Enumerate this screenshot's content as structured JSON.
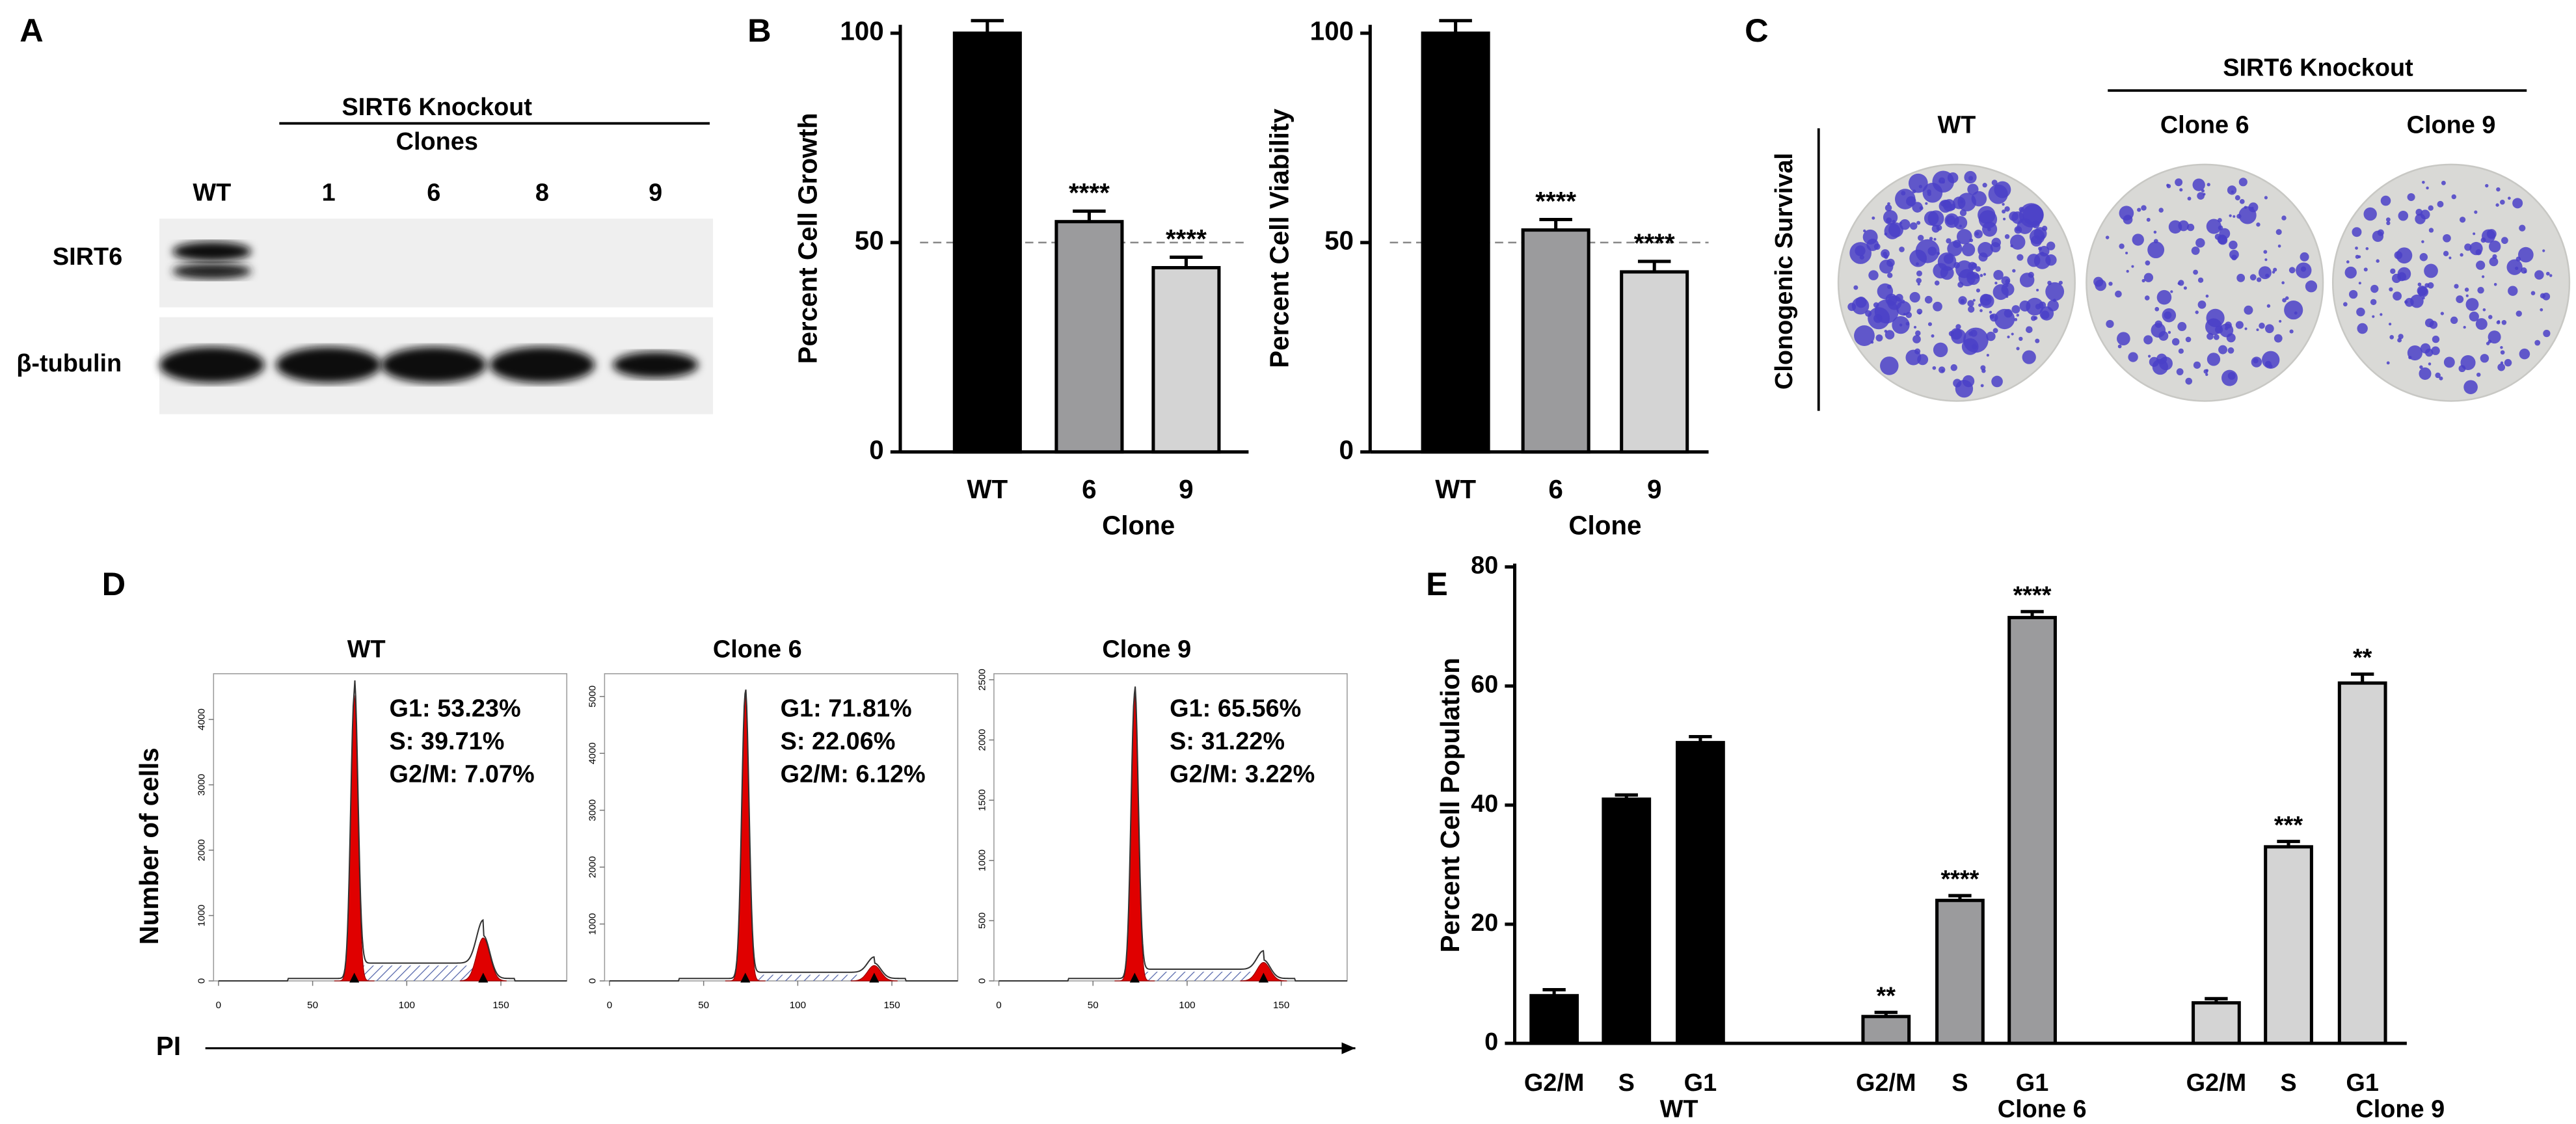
{
  "panel_labels": [
    "A",
    "B",
    "C",
    "D",
    "E"
  ],
  "western_blot": {
    "title": "SIRT6 Knockout",
    "subtitle": "Clones",
    "lanes": [
      "WT",
      "1",
      "6",
      "8",
      "9"
    ],
    "rows": [
      "SIRT6",
      "β-tubulin"
    ]
  },
  "clonogenic": {
    "title": "SIRT6 Knockout",
    "ylabel": "Clonogenic Survival",
    "plates": [
      "WT",
      "Clone 6",
      "Clone 9"
    ]
  },
  "flow_cytometry": {
    "ylabel": "Number of cells",
    "xlabel": "PI"
  },
  "chart_data": [
    {
      "type": "bar",
      "ylabel": "Percent Cell Growth",
      "xlabel": "Clone",
      "categories": [
        "WT",
        "6",
        "9"
      ],
      "values": [
        100,
        55,
        44
      ],
      "errors": [
        3,
        2.5,
        2.5
      ],
      "colors": [
        "#000000",
        "#9b9b9d",
        "#d4d4d4"
      ],
      "annotations": [
        null,
        "****",
        "****"
      ],
      "reference_line": 50,
      "ylim": [
        0,
        102
      ],
      "yticks": [
        0,
        50,
        100
      ]
    },
    {
      "type": "bar",
      "ylabel": "Percent Cell Viability",
      "xlabel": "Clone",
      "categories": [
        "WT",
        "6",
        "9"
      ],
      "values": [
        100,
        53,
        43
      ],
      "errors": [
        3,
        2.5,
        2.5
      ],
      "colors": [
        "#000000",
        "#9b9b9d",
        "#d4d4d4"
      ],
      "annotations": [
        null,
        "****",
        "****"
      ],
      "reference_line": 50,
      "ylim": [
        0,
        102
      ],
      "yticks": [
        0,
        50,
        100
      ]
    },
    {
      "type": "histogram",
      "title": "WT",
      "annotations": [
        "G1: 53.23%",
        "S: 39.71%",
        "G2/M: 7.07%"
      ],
      "xlim": [
        0,
        185
      ],
      "xticks": [
        0,
        50,
        100,
        150
      ],
      "ylim": [
        0,
        4700
      ],
      "yticks": [
        0,
        1000,
        2000,
        3000,
        4000
      ]
    },
    {
      "type": "histogram",
      "title": "Clone 6",
      "annotations": [
        "G1: 71.81%",
        "S: 22.06%",
        "G2/M: 6.12%"
      ],
      "xlim": [
        0,
        185
      ],
      "xticks": [
        0,
        50,
        100,
        150
      ],
      "ylim": [
        0,
        5400
      ],
      "yticks": [
        0,
        1000,
        2000,
        3000,
        4000,
        5000
      ]
    },
    {
      "type": "histogram",
      "title": "Clone 9",
      "annotations": [
        "G1: 65.56%",
        "S: 31.22%",
        "G2/M: 3.22%"
      ],
      "xlim": [
        0,
        185
      ],
      "xticks": [
        0,
        50,
        100,
        150
      ],
      "ylim": [
        0,
        2550
      ],
      "yticks": [
        0,
        500,
        1000,
        1500,
        2000,
        2500
      ]
    },
    {
      "type": "grouped_bar",
      "ylabel": "Percent Cell Population",
      "categories": [
        "G2/M",
        "S",
        "G1"
      ],
      "ylim": [
        0,
        80
      ],
      "yticks": [
        0,
        20,
        40,
        60,
        80
      ],
      "series": [
        {
          "name": "WT",
          "color": "#000000",
          "values": [
            8,
            41,
            50.5
          ],
          "errors": [
            1,
            0.7,
            1
          ],
          "annotations": [
            null,
            null,
            null
          ]
        },
        {
          "name": "Clone 6",
          "color": "#9b9b9d",
          "values": [
            4.5,
            24,
            71.5
          ],
          "errors": [
            0.7,
            0.8,
            1
          ],
          "annotations": [
            "**",
            "****",
            "****"
          ]
        },
        {
          "name": "Clone 9",
          "color": "#d4d4d4",
          "values": [
            6.8,
            33,
            60.5
          ],
          "errors": [
            0.7,
            0.9,
            1.5
          ],
          "annotations": [
            null,
            "***",
            "**"
          ]
        }
      ]
    }
  ]
}
